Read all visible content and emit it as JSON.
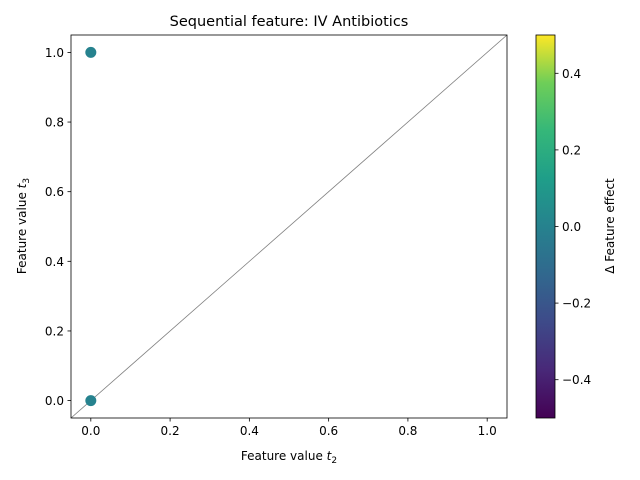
{
  "chart_data": {
    "type": "scatter",
    "title": "Sequential feature: IV Antibiotics",
    "xlabel": {
      "prefix": "Feature value ",
      "var": "t",
      "sub": "2"
    },
    "ylabel": {
      "prefix": "Feature value ",
      "var": "t",
      "sub": "3"
    },
    "xlim": [
      -0.05,
      1.05
    ],
    "ylim": [
      -0.05,
      1.05
    ],
    "xticks": [
      0.0,
      0.2,
      0.4,
      0.6,
      0.8,
      1.0
    ],
    "yticks": [
      0.0,
      0.2,
      0.4,
      0.6,
      0.8,
      1.0
    ],
    "xtick_labels": [
      "0.0",
      "0.2",
      "0.4",
      "0.6",
      "0.8",
      "1.0"
    ],
    "ytick_labels": [
      "0.0",
      "0.2",
      "0.4",
      "0.6",
      "0.8",
      "1.0"
    ],
    "grid": false,
    "diagonal_reference_line": true,
    "points": [
      {
        "x": 0.0,
        "y": 1.0,
        "value": 0.0
      },
      {
        "x": 0.0,
        "y": 0.0,
        "value": 0.0
      }
    ],
    "colorbar": {
      "label": "Δ Feature effect",
      "colormap": "viridis",
      "range": [
        -0.5,
        0.5
      ],
      "ticks": [
        -0.4,
        -0.2,
        0.0,
        0.2,
        0.4
      ],
      "tick_labels": [
        "−0.4",
        "−0.2",
        "0.0",
        "0.2",
        "0.4"
      ]
    },
    "colors": {
      "reference_line": "#808080",
      "point": "#21918c"
    }
  }
}
